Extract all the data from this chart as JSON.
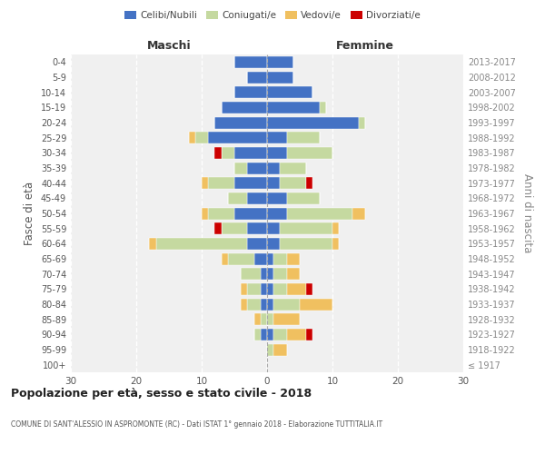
{
  "age_groups": [
    "100+",
    "95-99",
    "90-94",
    "85-89",
    "80-84",
    "75-79",
    "70-74",
    "65-69",
    "60-64",
    "55-59",
    "50-54",
    "45-49",
    "40-44",
    "35-39",
    "30-34",
    "25-29",
    "20-24",
    "15-19",
    "10-14",
    "5-9",
    "0-4"
  ],
  "birth_years": [
    "≤ 1917",
    "1918-1922",
    "1923-1927",
    "1928-1932",
    "1933-1937",
    "1938-1942",
    "1943-1947",
    "1948-1952",
    "1953-1957",
    "1958-1962",
    "1963-1967",
    "1968-1972",
    "1973-1977",
    "1978-1982",
    "1983-1987",
    "1988-1992",
    "1993-1997",
    "1998-2002",
    "2003-2007",
    "2008-2012",
    "2013-2017"
  ],
  "males": {
    "celibi": [
      0,
      0,
      1,
      0,
      1,
      1,
      1,
      2,
      3,
      3,
      5,
      3,
      5,
      3,
      5,
      9,
      8,
      7,
      5,
      3,
      5
    ],
    "coniugati": [
      0,
      0,
      1,
      1,
      2,
      2,
      3,
      4,
      14,
      4,
      4,
      3,
      4,
      2,
      2,
      2,
      0,
      0,
      0,
      0,
      0
    ],
    "vedovi": [
      0,
      0,
      0,
      1,
      1,
      1,
      0,
      1,
      1,
      0,
      1,
      0,
      1,
      0,
      0,
      1,
      0,
      0,
      0,
      0,
      0
    ],
    "divorziati": [
      0,
      0,
      0,
      0,
      0,
      0,
      0,
      0,
      0,
      1,
      0,
      0,
      0,
      0,
      1,
      0,
      0,
      0,
      0,
      0,
      0
    ]
  },
  "females": {
    "nubili": [
      0,
      0,
      1,
      0,
      1,
      1,
      1,
      1,
      2,
      2,
      3,
      3,
      2,
      2,
      3,
      3,
      14,
      8,
      7,
      4,
      4
    ],
    "coniugate": [
      0,
      1,
      2,
      1,
      4,
      2,
      2,
      2,
      8,
      8,
      10,
      5,
      4,
      4,
      7,
      5,
      1,
      1,
      0,
      0,
      0
    ],
    "vedove": [
      0,
      2,
      3,
      4,
      5,
      3,
      2,
      2,
      1,
      1,
      2,
      0,
      0,
      0,
      0,
      0,
      0,
      0,
      0,
      0,
      0
    ],
    "divorziate": [
      0,
      0,
      1,
      0,
      0,
      1,
      0,
      0,
      0,
      0,
      0,
      0,
      1,
      0,
      0,
      0,
      0,
      0,
      0,
      0,
      0
    ]
  },
  "colors": {
    "celibi": "#4472C4",
    "coniugati": "#C5D9A0",
    "vedovi": "#F0C060",
    "divorziati": "#CC0000"
  },
  "xlim": 30,
  "title": "Popolazione per età, sesso e stato civile - 2018",
  "subtitle": "COMUNE DI SANT'ALESSIO IN ASPROMONTE (RC) - Dati ISTAT 1° gennaio 2018 - Elaborazione TUTTITALIA.IT",
  "ylabel_left": "Fasce di età",
  "ylabel_right": "Anni di nascita",
  "maschi_label": "Maschi",
  "femmine_label": "Femmine",
  "legend_labels": [
    "Celibi/Nubili",
    "Coniugati/e",
    "Vedovi/e",
    "Divorziati/e"
  ],
  "bg_color": "#ffffff",
  "plot_bg_color": "#f0f0f0"
}
